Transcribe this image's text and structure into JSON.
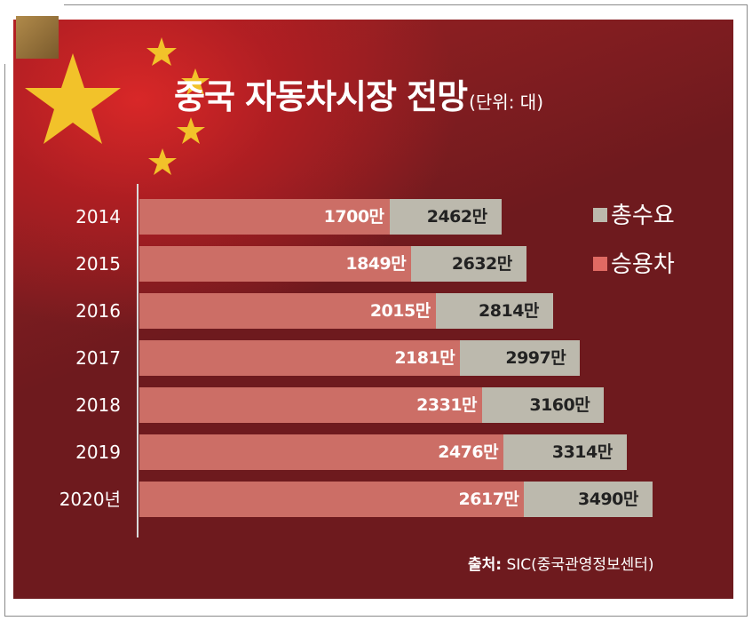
{
  "title": "중국 자동차시장 전망",
  "unit": "(단위: 대)",
  "legend": [
    {
      "label": "총수요",
      "color": "#bcb9ad"
    },
    {
      "label": "승용차",
      "color": "#e06a63"
    }
  ],
  "source_label": "출처:",
  "source_text": "SIC(중국관영정보센터)",
  "chart_data": {
    "type": "bar",
    "orientation": "horizontal",
    "categories": [
      "2014",
      "2015",
      "2016",
      "2017",
      "2018",
      "2019",
      "2020년"
    ],
    "series": [
      {
        "name": "총수요",
        "values": [
          2462,
          2632,
          2814,
          2997,
          3160,
          3314,
          3490
        ],
        "labels": [
          "2462만",
          "2632만",
          "2814만",
          "2997만",
          "3160만",
          "3314만",
          "3490만"
        ]
      },
      {
        "name": "승용차",
        "values": [
          1700,
          1849,
          2015,
          2181,
          2331,
          2476,
          2617
        ],
        "labels": [
          "1700만",
          "1849만",
          "2015만",
          "2181만",
          "2331만",
          "2476만",
          "2617만"
        ]
      }
    ],
    "value_unit": "만"
  }
}
